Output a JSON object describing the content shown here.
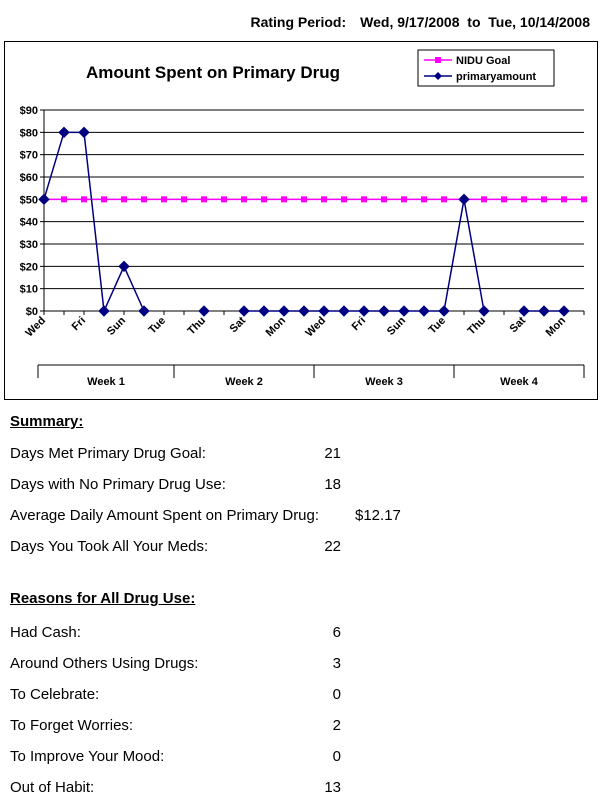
{
  "header": {
    "rating_label": "Rating Period:",
    "start": "Wed, 9/17/2008",
    "to": "to",
    "end": "Tue, 10/14/2008"
  },
  "chart_data": {
    "type": "line",
    "title": "Amount Spent on Primary Drug",
    "ylim": [
      0,
      90
    ],
    "ytick_values": [
      0,
      10,
      20,
      30,
      40,
      50,
      60,
      70,
      80,
      90
    ],
    "ytick_labels": [
      "$0",
      "$10",
      "$20",
      "$30",
      "$40",
      "$50",
      "$60",
      "$70",
      "$80",
      "$90"
    ],
    "grid": true,
    "legend_position": "top-right",
    "x_count": 28,
    "x_tick_labels": [
      {
        "i": 0,
        "label": "Wed"
      },
      {
        "i": 2,
        "label": "Fri"
      },
      {
        "i": 4,
        "label": "Sun"
      },
      {
        "i": 6,
        "label": "Tue"
      },
      {
        "i": 8,
        "label": "Thu"
      },
      {
        "i": 10,
        "label": "Sat"
      },
      {
        "i": 12,
        "label": "Mon"
      },
      {
        "i": 14,
        "label": "Wed"
      },
      {
        "i": 16,
        "label": "Fri"
      },
      {
        "i": 18,
        "label": "Sun"
      },
      {
        "i": 20,
        "label": "Tue"
      },
      {
        "i": 22,
        "label": "Thu"
      },
      {
        "i": 24,
        "label": "Sat"
      },
      {
        "i": 26,
        "label": "Mon"
      }
    ],
    "weeks": [
      "Week 1",
      "Week 2",
      "Week 3",
      "Week 4"
    ],
    "series": [
      {
        "name": "NIDU Goal",
        "color": "#ff00ff",
        "marker": "square",
        "values": [
          50,
          50,
          50,
          50,
          50,
          50,
          50,
          50,
          50,
          50,
          50,
          50,
          50,
          50,
          50,
          50,
          50,
          50,
          50,
          50,
          50,
          50,
          50,
          50,
          50,
          50,
          50,
          50
        ]
      },
      {
        "name": "primaryamount",
        "color": "#000080",
        "marker": "diamond",
        "values": [
          50,
          80,
          80,
          0,
          20,
          0,
          null,
          null,
          0,
          null,
          0,
          0,
          0,
          0,
          0,
          0,
          0,
          0,
          0,
          0,
          0,
          50,
          0,
          null,
          0,
          0,
          0,
          null
        ]
      }
    ]
  },
  "summary": {
    "title": "Summary:",
    "items": [
      {
        "label": "Days Met Primary Drug Goal:",
        "value": "21",
        "extra": ""
      },
      {
        "label": "Days with No Primary Drug Use:",
        "value": "18",
        "extra": ""
      },
      {
        "label": "Average Daily Amount Spent on Primary Drug:",
        "value": "",
        "extra": "$12.17"
      },
      {
        "label": "Days You Took All Your Meds:",
        "value": "22",
        "extra": ""
      }
    ]
  },
  "reasons": {
    "title": "Reasons for All Drug Use:",
    "items": [
      {
        "label": "Had Cash:",
        "value": "6"
      },
      {
        "label": "Around Others Using Drugs:",
        "value": "3"
      },
      {
        "label": "To Celebrate:",
        "value": "0"
      },
      {
        "label": "To Forget Worries:",
        "value": "2"
      },
      {
        "label": "To Improve Your Mood:",
        "value": "0"
      },
      {
        "label": "Out of Habit:",
        "value": "13"
      }
    ]
  }
}
